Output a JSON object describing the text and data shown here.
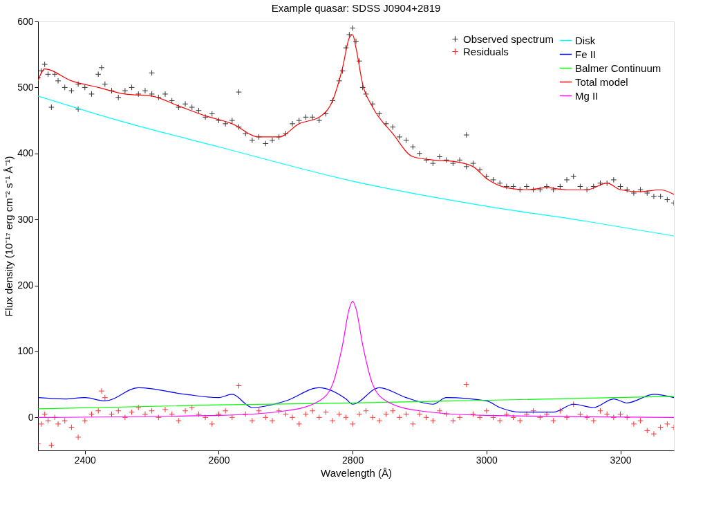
{
  "chart_data": {
    "type": "line",
    "title": "Example quasar: SDSS J0904+2819",
    "xlabel": "Wavelength (Å)",
    "ylabel": "Flux density (10⁻¹⁷ erg cm⁻² s⁻¹ Å⁻¹)",
    "xlim": [
      2330,
      3280
    ],
    "ylim": [
      -50,
      600
    ],
    "xticks": [
      2400,
      2600,
      2800,
      3000,
      3200
    ],
    "yticks": [
      0,
      100,
      200,
      300,
      400,
      500,
      600
    ],
    "grid": false,
    "legend": "top right",
    "series": [
      {
        "name": "Observed spectrum",
        "type": "scatter",
        "marker": "cross",
        "color": "#000000",
        "x": [
          2330,
          2335,
          2340,
          2345,
          2350,
          2355,
          2360,
          2370,
          2380,
          2390,
          2390,
          2400,
          2410,
          2420,
          2425,
          2430,
          2440,
          2450,
          2460,
          2470,
          2480,
          2490,
          2500,
          2500,
          2510,
          2520,
          2530,
          2540,
          2550,
          2560,
          2570,
          2580,
          2590,
          2600,
          2610,
          2620,
          2630,
          2630,
          2640,
          2650,
          2660,
          2670,
          2680,
          2690,
          2700,
          2710,
          2720,
          2730,
          2740,
          2750,
          2760,
          2770,
          2780,
          2785,
          2790,
          2795,
          2800,
          2805,
          2810,
          2815,
          2820,
          2830,
          2840,
          2850,
          2860,
          2870,
          2880,
          2890,
          2900,
          2910,
          2920,
          2930,
          2940,
          2950,
          2960,
          2970,
          2970,
          2980,
          2990,
          3000,
          3010,
          3020,
          3030,
          3040,
          3050,
          3060,
          3070,
          3080,
          3090,
          3100,
          3110,
          3120,
          3130,
          3140,
          3150,
          3160,
          3170,
          3180,
          3190,
          3200,
          3210,
          3220,
          3230,
          3240,
          3250,
          3260,
          3270,
          3280
        ],
        "values": [
          515,
          525,
          535,
          520,
          470,
          520,
          510,
          500,
          495,
          505,
          467,
          500,
          490,
          520,
          530,
          505,
          495,
          485,
          495,
          500,
          490,
          495,
          490,
          522,
          485,
          490,
          480,
          470,
          475,
          470,
          465,
          455,
          460,
          450,
          445,
          450,
          440,
          493,
          430,
          420,
          425,
          415,
          420,
          425,
          430,
          445,
          450,
          455,
          455,
          450,
          460,
          480,
          510,
          525,
          560,
          580,
          590,
          570,
          540,
          500,
          490,
          475,
          460,
          445,
          440,
          425,
          420,
          410,
          400,
          390,
          385,
          395,
          390,
          385,
          390,
          380,
          428,
          385,
          375,
          365,
          360,
          355,
          350,
          350,
          345,
          350,
          345,
          345,
          350,
          345,
          350,
          360,
          365,
          350,
          345,
          350,
          355,
          355,
          360,
          350,
          345,
          340,
          345,
          340,
          335,
          335,
          330,
          325
        ]
      },
      {
        "name": "Residuals",
        "type": "scatter",
        "marker": "cross",
        "color": "#ff0000",
        "x": [
          2330,
          2335,
          2340,
          2345,
          2350,
          2355,
          2360,
          2370,
          2380,
          2390,
          2400,
          2410,
          2420,
          2425,
          2430,
          2440,
          2450,
          2460,
          2470,
          2480,
          2490,
          2500,
          2510,
          2520,
          2530,
          2540,
          2550,
          2560,
          2570,
          2580,
          2590,
          2600,
          2610,
          2620,
          2630,
          2640,
          2650,
          2660,
          2670,
          2680,
          2690,
          2700,
          2710,
          2720,
          2730,
          2740,
          2750,
          2760,
          2770,
          2780,
          2790,
          2800,
          2810,
          2820,
          2830,
          2840,
          2850,
          2860,
          2870,
          2880,
          2890,
          2900,
          2910,
          2920,
          2930,
          2940,
          2950,
          2960,
          2970,
          2980,
          2990,
          3000,
          3010,
          3020,
          3030,
          3040,
          3050,
          3060,
          3070,
          3080,
          3090,
          3100,
          3110,
          3120,
          3130,
          3140,
          3150,
          3160,
          3170,
          3180,
          3190,
          3200,
          3210,
          3220,
          3230,
          3240,
          3250,
          3260,
          3270,
          3280
        ],
        "values": [
          -40,
          -10,
          5,
          -5,
          -42,
          0,
          -10,
          -5,
          -15,
          -30,
          -5,
          5,
          10,
          40,
          30,
          5,
          10,
          0,
          8,
          15,
          5,
          10,
          0,
          12,
          5,
          -5,
          10,
          15,
          5,
          0,
          -10,
          5,
          10,
          0,
          48,
          5,
          -5,
          10,
          0,
          -5,
          10,
          5,
          0,
          -10,
          5,
          10,
          0,
          8,
          -5,
          5,
          0,
          -10,
          5,
          10,
          0,
          -5,
          5,
          10,
          0,
          5,
          -10,
          5,
          0,
          -5,
          10,
          5,
          -5,
          0,
          50,
          5,
          0,
          10,
          0,
          -5,
          5,
          0,
          -5,
          5,
          10,
          0,
          5,
          -5,
          10,
          0,
          20,
          5,
          0,
          -5,
          10,
          5,
          0,
          5,
          0,
          -10,
          -5,
          -20,
          -25,
          -15,
          -10,
          -15
        ]
      },
      {
        "name": "Disk",
        "color": "#00ffff",
        "x": [
          2330,
          2450,
          2600,
          2800,
          3000,
          3150,
          3280
        ],
        "values": [
          487,
          450,
          410,
          358,
          320,
          297,
          275
        ]
      },
      {
        "name": "Fe II",
        "color": "#0000ff",
        "x": [
          2330,
          2370,
          2400,
          2430,
          2480,
          2550,
          2600,
          2620,
          2650,
          2700,
          2750,
          2790,
          2800,
          2840,
          2880,
          2920,
          2940,
          3000,
          3020,
          3050,
          3100,
          3130,
          3160,
          3190,
          3210,
          3250,
          3280
        ],
        "values": [
          30,
          28,
          30,
          25,
          45,
          35,
          30,
          35,
          15,
          25,
          45,
          28,
          20,
          45,
          30,
          20,
          30,
          25,
          15,
          8,
          8,
          20,
          15,
          28,
          22,
          35,
          30
        ]
      },
      {
        "name": "Balmer Continuum",
        "color": "#00ff00",
        "x": [
          2330,
          2600,
          2800,
          3000,
          3280
        ],
        "values": [
          13,
          19,
          22,
          26,
          32
        ]
      },
      {
        "name": "Total model",
        "color": "#ff0000",
        "x": [
          2330,
          2340,
          2380,
          2420,
          2460,
          2500,
          2540,
          2580,
          2620,
          2660,
          2690,
          2720,
          2750,
          2770,
          2785,
          2795,
          2800,
          2805,
          2815,
          2830,
          2860,
          2890,
          2920,
          2950,
          2980,
          3000,
          3030,
          3060,
          3090,
          3120,
          3150,
          3180,
          3200,
          3230,
          3260,
          3280
        ],
        "values": [
          510,
          528,
          510,
          500,
          490,
          487,
          472,
          457,
          445,
          425,
          425,
          445,
          455,
          480,
          530,
          575,
          580,
          560,
          505,
          470,
          430,
          395,
          390,
          388,
          380,
          362,
          348,
          345,
          348,
          345,
          345,
          355,
          345,
          342,
          345,
          338
        ]
      },
      {
        "name": "Mg II",
        "color": "#ff00ff",
        "x": [
          2330,
          2600,
          2700,
          2750,
          2770,
          2785,
          2795,
          2800,
          2805,
          2815,
          2830,
          2850,
          2900,
          3000,
          3280
        ],
        "values": [
          0,
          3,
          10,
          25,
          50,
          110,
          165,
          176,
          165,
          110,
          50,
          25,
          10,
          3,
          0
        ]
      }
    ]
  }
}
